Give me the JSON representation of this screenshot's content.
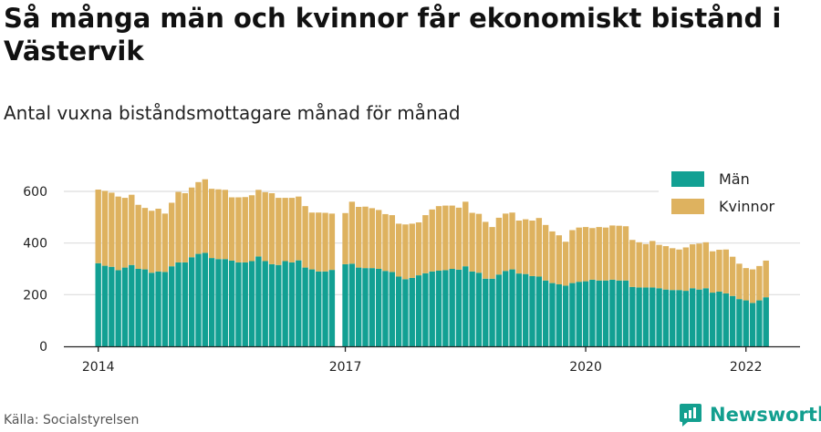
{
  "title": "Så många män och kvinnor får ekonomiskt bistånd i Västervik",
  "subtitle": "Antal vuxna biståndsmottagare månad för månad",
  "source": "Källa: Socialstyrelsen",
  "brand": "Newsworthy",
  "colors": {
    "men": "#12a093",
    "women": "#deb25f",
    "grid": "#dddddd",
    "axis": "#222222",
    "brand": "#139f8f"
  },
  "chart_data": {
    "type": "bar",
    "stacked": true,
    "xlabel": "",
    "ylabel": "",
    "ylim": [
      0,
      700
    ],
    "y_ticks": [
      0,
      200,
      400,
      600
    ],
    "x_ticks": [
      "2014",
      "2017",
      "2020",
      "2022"
    ],
    "legend_position": "top-right",
    "grid": true,
    "series": [
      {
        "name": "Män",
        "values": [
          322,
          312,
          308,
          295,
          305,
          315,
          300,
          298,
          285,
          290,
          288,
          310,
          325,
          325,
          345,
          358,
          362,
          342,
          338,
          338,
          332,
          325,
          325,
          330,
          348,
          330,
          318,
          315,
          330,
          325,
          333,
          305,
          298,
          290,
          290,
          296,
          null,
          318,
          320,
          305,
          303,
          303,
          300,
          292,
          288,
          270,
          260,
          265,
          275,
          283,
          290,
          293,
          295,
          300,
          297,
          310,
          290,
          285,
          262,
          262,
          278,
          292,
          298,
          282,
          280,
          272,
          270,
          255,
          245,
          240,
          235,
          245,
          250,
          252,
          258,
          255,
          255,
          258,
          255,
          255,
          230,
          228,
          228,
          228,
          225,
          220,
          218,
          218,
          215,
          225,
          220,
          225,
          208,
          212,
          205,
          195,
          183,
          178,
          168,
          178,
          190
        ]
      },
      {
        "name": "Kvinnor",
        "values": [
          285,
          290,
          287,
          285,
          270,
          272,
          248,
          238,
          240,
          243,
          226,
          246,
          273,
          268,
          270,
          278,
          285,
          268,
          270,
          268,
          245,
          252,
          253,
          255,
          258,
          267,
          275,
          260,
          245,
          250,
          247,
          238,
          220,
          228,
          227,
          218,
          null,
          198,
          240,
          235,
          238,
          232,
          228,
          220,
          220,
          205,
          212,
          210,
          205,
          225,
          240,
          250,
          250,
          245,
          240,
          250,
          227,
          228,
          220,
          200,
          220,
          222,
          220,
          205,
          212,
          215,
          227,
          215,
          200,
          190,
          170,
          205,
          210,
          210,
          200,
          207,
          205,
          210,
          212,
          210,
          182,
          175,
          168,
          180,
          168,
          168,
          162,
          157,
          168,
          170,
          178,
          178,
          160,
          162,
          170,
          152,
          137,
          125,
          130,
          133,
          142
        ]
      }
    ]
  }
}
